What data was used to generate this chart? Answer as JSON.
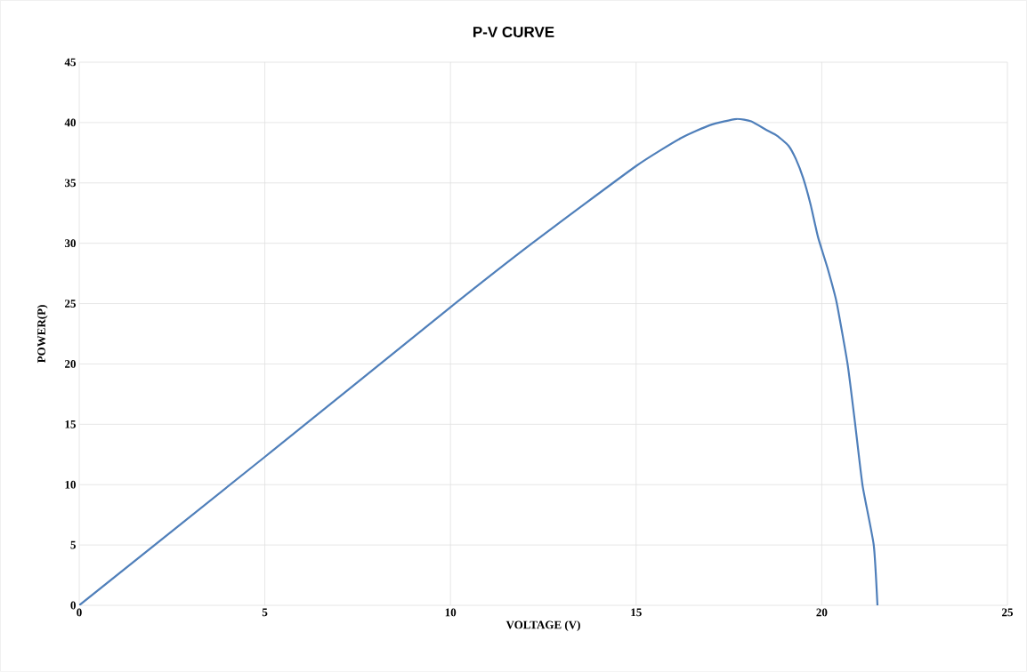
{
  "chart_data": {
    "type": "line",
    "title": "P-V CURVE",
    "xlabel": "VOLTAGE (V)",
    "ylabel": "POWER(P)",
    "x": [
      0,
      5,
      10,
      12.2,
      15,
      16.2,
      17,
      17.7,
      18.1,
      18.5,
      18.8,
      19.1,
      19.3,
      19.5,
      19.7,
      19.9,
      20.15,
      20.4,
      20.7,
      20.9,
      21.1,
      21.4,
      21.5
    ],
    "series": [
      {
        "color": "#4f7fba",
        "values": [
          0,
          12.3,
          24.7,
          30,
          36.4,
          38.7,
          39.8,
          40.3,
          40.1,
          39.4,
          38.9,
          38.1,
          37.0,
          35.4,
          33.2,
          30.5,
          28,
          25.1,
          19.9,
          15,
          9.9,
          5,
          0
        ]
      }
    ],
    "xlim": [
      0,
      25
    ],
    "ylim": [
      0,
      45
    ],
    "xticks": [
      0,
      5,
      10,
      15,
      20,
      25
    ],
    "yticks": [
      0,
      5,
      10,
      15,
      20,
      25,
      30,
      35,
      40,
      45
    ],
    "grid": true,
    "marker": "none",
    "line_style": "solid"
  }
}
